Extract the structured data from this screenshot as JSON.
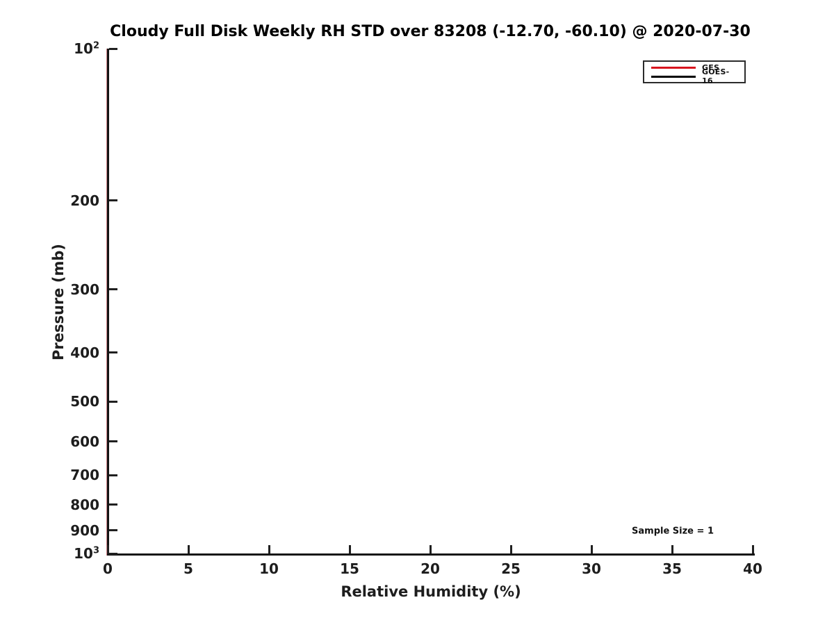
{
  "chart_data": {
    "type": "line",
    "title": "Cloudy Full Disk Weekly RH STD over 83208 (-12.70, -60.10) @ 2020-07-30",
    "xlabel": "Relative Humidity (%)",
    "ylabel": "Pressure (mb)",
    "xlim": [
      0,
      40
    ],
    "x_ticks": [
      0,
      5,
      10,
      15,
      20,
      25,
      30,
      35,
      40
    ],
    "yscale": "log",
    "ylim_mb": [
      100,
      1000
    ],
    "y_increases_downward": true,
    "grid": false,
    "y_ticks": [
      {
        "value": 100,
        "base": "10",
        "exp": "2"
      },
      {
        "value": 200,
        "text": "200"
      },
      {
        "value": 300,
        "text": "300"
      },
      {
        "value": 400,
        "text": "400"
      },
      {
        "value": 500,
        "text": "500"
      },
      {
        "value": 600,
        "text": "600"
      },
      {
        "value": 700,
        "text": "700"
      },
      {
        "value": 800,
        "text": "800"
      },
      {
        "value": 900,
        "text": "900"
      },
      {
        "value": 1000,
        "base": "10",
        "exp": "3"
      }
    ],
    "legend": {
      "position": "top-right",
      "entries": [
        {
          "label": "GFS",
          "color": "#d8141e"
        },
        {
          "label": "GOES-16",
          "color": "#000000"
        }
      ]
    },
    "series": [
      {
        "name": "GFS",
        "color": "#d8141e",
        "x": [],
        "y": []
      },
      {
        "name": "GOES-16",
        "color": "#000000",
        "x": [],
        "y": []
      }
    ],
    "annotations": [
      {
        "text": "Sample Size = 1"
      }
    ],
    "colors": {
      "axis": "#141414",
      "tick_text": "#1d1d1d",
      "title_text": "#000000"
    }
  }
}
